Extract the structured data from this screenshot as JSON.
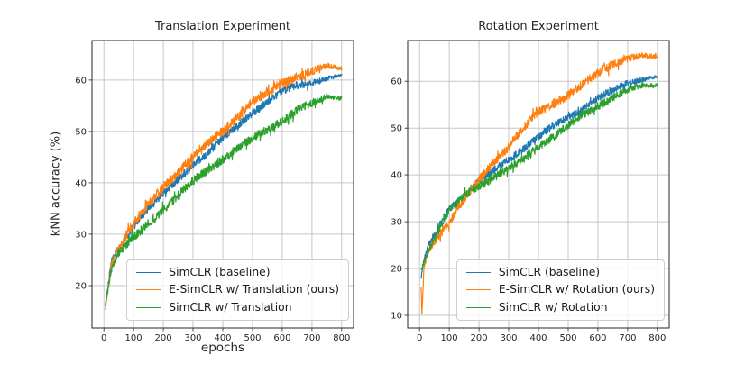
{
  "figure": {
    "background": "#ffffff",
    "grid_color": "#c6c6c6",
    "spine_color": "#262626",
    "tick_label_color": "#262626"
  },
  "chart_data": [
    {
      "type": "line",
      "title": "Translation Experiment",
      "xlabel": "epochs",
      "ylabel": "kNN accuracy (%)",
      "xlim": [
        -40,
        840
      ],
      "ylim": [
        11.75,
        67.7
      ],
      "xticks": [
        0,
        100,
        200,
        300,
        400,
        500,
        600,
        700,
        800
      ],
      "yticks": [
        20,
        30,
        40,
        50,
        60
      ],
      "grid": true,
      "legend_position": "lower right",
      "series": [
        {
          "name": "SimCLR (baseline)",
          "color": "#1f77b4",
          "noise": 0.75,
          "seed": 101,
          "x": [
            5,
            25,
            50,
            100,
            150,
            200,
            250,
            300,
            350,
            400,
            450,
            500,
            550,
            600,
            650,
            700,
            750,
            800
          ],
          "y": [
            16,
            24.5,
            27,
            31.5,
            35,
            38,
            41,
            44,
            46,
            48.5,
            51,
            53.5,
            55.5,
            57.5,
            59,
            59.8,
            60.5,
            61
          ]
        },
        {
          "name": "E-SimCLR w/ Translation (ours)",
          "color": "#ff7f0e",
          "noise": 0.95,
          "seed": 202,
          "x": [
            5,
            25,
            50,
            100,
            150,
            200,
            250,
            300,
            350,
            400,
            450,
            500,
            550,
            600,
            650,
            700,
            750,
            800
          ],
          "y": [
            15.5,
            24,
            27.5,
            32,
            36,
            39.5,
            42.5,
            45.3,
            47.5,
            49.8,
            52.5,
            55.5,
            57.5,
            59.5,
            61,
            62,
            62.8,
            62.3
          ]
        },
        {
          "name": "SimCLR w/ Translation",
          "color": "#2ca02c",
          "noise": 0.85,
          "seed": 303,
          "x": [
            5,
            25,
            50,
            100,
            150,
            200,
            250,
            300,
            350,
            400,
            450,
            500,
            550,
            600,
            650,
            700,
            750,
            800
          ],
          "y": [
            16.5,
            23,
            26.5,
            29.5,
            32.5,
            35,
            37.5,
            40,
            42.3,
            44.5,
            46.5,
            48.5,
            50.5,
            52.5,
            54.5,
            55.5,
            56.8,
            56.4
          ]
        }
      ]
    },
    {
      "type": "line",
      "title": "Rotation Experiment",
      "xlabel": "",
      "ylabel": "",
      "xlim": [
        -40,
        840
      ],
      "ylim": [
        7.3,
        68.7
      ],
      "xticks": [
        0,
        100,
        200,
        300,
        400,
        500,
        600,
        700,
        800
      ],
      "yticks": [
        10,
        20,
        30,
        40,
        50,
        60
      ],
      "grid": true,
      "legend_position": "lower right",
      "series": [
        {
          "name": "SimCLR (baseline)",
          "color": "#1f77b4",
          "noise": 0.8,
          "seed": 404,
          "x": [
            5,
            15,
            30,
            50,
            100,
            150,
            200,
            250,
            300,
            350,
            400,
            450,
            500,
            550,
            600,
            650,
            700,
            750,
            800
          ],
          "y": [
            18,
            22,
            25,
            27.5,
            33,
            36,
            38.5,
            40.5,
            43,
            45.5,
            48,
            50.5,
            52.5,
            54.5,
            56.5,
            58,
            59.5,
            60.3,
            60.8
          ]
        },
        {
          "name": "E-SimCLR w/ Rotation (ours)",
          "color": "#ff7f0e",
          "noise": 0.95,
          "seed": 505,
          "x": [
            5,
            8,
            15,
            30,
            50,
            100,
            150,
            200,
            250,
            300,
            350,
            400,
            450,
            500,
            550,
            600,
            650,
            700,
            750,
            800
          ],
          "y": [
            16.5,
            10.3,
            20.5,
            24,
            26,
            30,
            34.5,
            38.5,
            42.5,
            46,
            50,
            53.5,
            55.5,
            57.5,
            59.5,
            61.5,
            63.5,
            64.8,
            65.3,
            65
          ]
        },
        {
          "name": "SimCLR w/ Rotation",
          "color": "#2ca02c",
          "noise": 0.85,
          "seed": 606,
          "x": [
            5,
            15,
            30,
            50,
            100,
            150,
            200,
            250,
            300,
            350,
            400,
            450,
            500,
            550,
            600,
            650,
            700,
            750,
            800
          ],
          "y": [
            19.5,
            21.5,
            24,
            26.5,
            32,
            35,
            37.5,
            39.5,
            41.5,
            43.5,
            46.5,
            48.5,
            50.5,
            52.5,
            54.5,
            56.5,
            58,
            59,
            59.3
          ]
        }
      ]
    }
  ]
}
